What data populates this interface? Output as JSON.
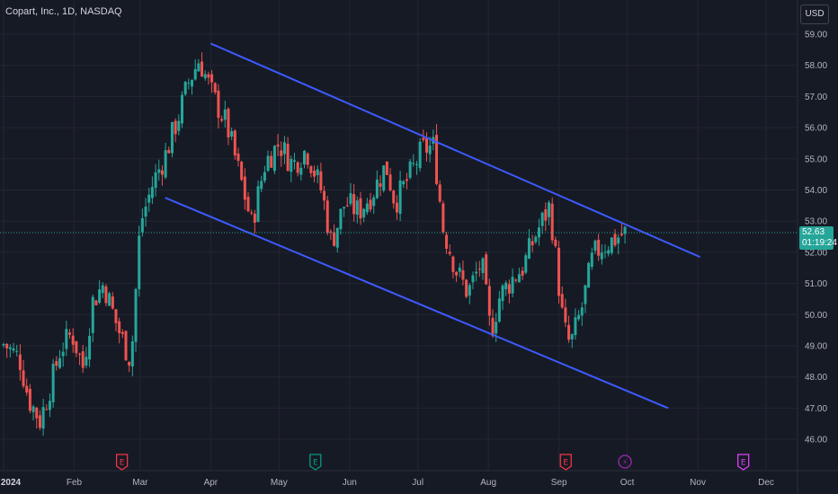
{
  "header": {
    "symbol_title": "Copart, Inc., 1D, NASDAQ",
    "currency_button": "USD"
  },
  "last_price": {
    "value": "52.63",
    "countdown": "01:19:24"
  },
  "colors": {
    "background": "#161a25",
    "grid": "#232632",
    "up": "#26a69a",
    "down": "#ef5350",
    "channel": "#3d5afe",
    "event_earnings": "#f23645",
    "event_earnings_up": "#089981",
    "event_dividend": "#9c27b0",
    "event_split": "#e040fb"
  },
  "chart_data": {
    "type": "candlestick",
    "title": "Copart, Inc., 1D, NASDAQ",
    "x_ticks": [
      "2024",
      "Feb",
      "Mar",
      "Apr",
      "May",
      "Jun",
      "Jul",
      "Aug",
      "Sep",
      "Oct",
      "Nov",
      "Dec"
    ],
    "y_ticks": [
      "46.00",
      "47.00",
      "48.00",
      "49.00",
      "50.00",
      "51.00",
      "52.00",
      "53.00",
      "54.00",
      "55.00",
      "56.00",
      "57.00",
      "58.00",
      "59.00"
    ],
    "ylim": [
      45.5,
      59.4
    ],
    "last_value": 52.63,
    "ohlc_close_path": [
      [
        "2024-01-02",
        49.0
      ],
      [
        "2024-01-08",
        48.6
      ],
      [
        "2024-01-12",
        47.3
      ],
      [
        "2024-01-17",
        46.6
      ],
      [
        "2024-01-22",
        47.8
      ],
      [
        "2024-01-26",
        48.9
      ],
      [
        "2024-01-31",
        49.4
      ],
      [
        "2024-02-05",
        48.3
      ],
      [
        "2024-02-09",
        50.4
      ],
      [
        "2024-02-14",
        51.0
      ],
      [
        "2024-02-20",
        49.6
      ],
      [
        "2024-02-26",
        48.5
      ],
      [
        "2024-03-01",
        52.9
      ],
      [
        "2024-03-07",
        54.3
      ],
      [
        "2024-03-12",
        55.1
      ],
      [
        "2024-03-18",
        56.4
      ],
      [
        "2024-03-22",
        57.4
      ],
      [
        "2024-03-27",
        58.2
      ],
      [
        "2024-04-02",
        57.0
      ],
      [
        "2024-04-08",
        56.1
      ],
      [
        "2024-04-15",
        54.1
      ],
      [
        "2024-04-19",
        52.9
      ],
      [
        "2024-04-25",
        54.9
      ],
      [
        "2024-05-01",
        55.5
      ],
      [
        "2024-05-07",
        54.8
      ],
      [
        "2024-05-13",
        55.3
      ],
      [
        "2024-05-20",
        53.9
      ],
      [
        "2024-05-24",
        52.3
      ],
      [
        "2024-05-30",
        53.6
      ],
      [
        "2024-06-05",
        53.3
      ],
      [
        "2024-06-11",
        53.9
      ],
      [
        "2024-06-17",
        54.8
      ],
      [
        "2024-06-21",
        53.6
      ],
      [
        "2024-06-27",
        54.4
      ],
      [
        "2024-07-03",
        55.3
      ],
      [
        "2024-07-08",
        55.4
      ],
      [
        "2024-07-12",
        52.8
      ],
      [
        "2024-07-18",
        51.4
      ],
      [
        "2024-07-23",
        50.7
      ],
      [
        "2024-07-29",
        51.7
      ],
      [
        "2024-08-02",
        49.4
      ],
      [
        "2024-08-06",
        50.6
      ],
      [
        "2024-08-12",
        51.2
      ],
      [
        "2024-08-16",
        51.5
      ],
      [
        "2024-08-22",
        52.6
      ],
      [
        "2024-08-28",
        53.5
      ],
      [
        "2024-09-03",
        49.6
      ],
      [
        "2024-09-06",
        49.0
      ],
      [
        "2024-09-11",
        50.2
      ],
      [
        "2024-09-16",
        51.9
      ],
      [
        "2024-09-20",
        52.2
      ],
      [
        "2024-09-25",
        52.4
      ],
      [
        "2024-09-30",
        52.63
      ]
    ],
    "channel_lines": [
      {
        "name": "upper",
        "from": [
          "2024-04-01",
          58.7
        ],
        "to": [
          "2024-11-02",
          51.85
        ]
      },
      {
        "name": "lower",
        "from": [
          "2024-03-12",
          53.75
        ],
        "to": [
          "2024-10-19",
          47.0
        ]
      }
    ],
    "events": [
      {
        "type": "earnings",
        "label": "E",
        "date": "2024-02-22"
      },
      {
        "type": "earnings",
        "label": "E",
        "date": "2024-05-17"
      },
      {
        "type": "earnings",
        "label": "E",
        "date": "2024-09-04"
      },
      {
        "type": "split",
        "label": "⚡",
        "date": "2024-09-30"
      },
      {
        "type": "earnings",
        "label": "E",
        "date": "2024-11-21"
      }
    ],
    "grid": true
  }
}
